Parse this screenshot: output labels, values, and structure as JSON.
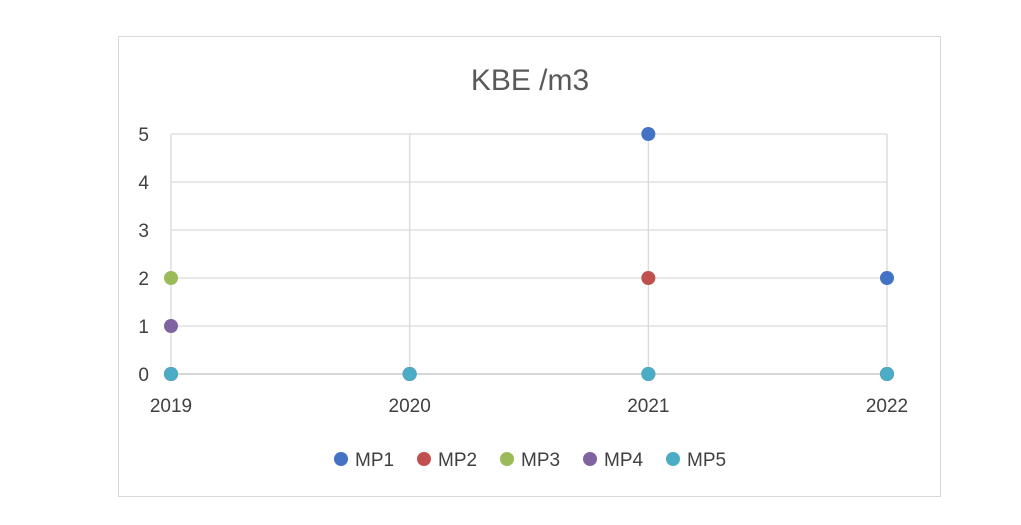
{
  "chart_data": {
    "type": "scatter",
    "title": "KBE /m3",
    "xlabel": "",
    "ylabel": "",
    "x": [
      2019,
      2020,
      2021,
      2022
    ],
    "x_ticks": [
      "2019",
      "2020",
      "2021",
      "2022"
    ],
    "y_ticks": [
      "0",
      "1",
      "2",
      "3",
      "4",
      "5"
    ],
    "xlim": [
      2019,
      2022
    ],
    "ylim": [
      0,
      5
    ],
    "grid": true,
    "legend_position": "bottom",
    "series": [
      {
        "name": "MP1",
        "color": "#4472C4",
        "values": [
          0,
          0,
          5,
          2
        ]
      },
      {
        "name": "MP2",
        "color": "#C0504D",
        "values": [
          0,
          0,
          2,
          0
        ]
      },
      {
        "name": "MP3",
        "color": "#9BBB59",
        "values": [
          2,
          0,
          0,
          0
        ]
      },
      {
        "name": "MP4",
        "color": "#8064A2",
        "values": [
          1,
          0,
          0,
          0
        ]
      },
      {
        "name": "MP5",
        "color": "#4BACC6",
        "values": [
          0,
          0,
          0,
          0
        ]
      }
    ]
  }
}
